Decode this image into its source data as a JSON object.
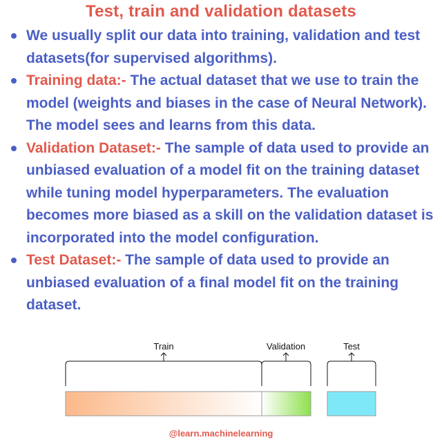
{
  "title": "Test, train and validation datasets",
  "bullets": [
    {
      "term": "",
      "text": "We usually split our data into training, validation and test datasets(for supervised algorithms)."
    },
    {
      "term": "Training data:-",
      "text": " The actual dataset that we use to train the model (weights and biases in the case of Neural Network). The model sees and learns from this data."
    },
    {
      "term": "Validation Dataset:-",
      "text": " The sample of data used to provide an unbiased evaluation of a model fit on the training dataset while tuning model hyperparameters. The evaluation becomes more biased as a skill on the validation dataset is incorporated into the model configuration."
    },
    {
      "term": "Test Dataset:-",
      "text": " The sample of data used to provide an unbiased evaluation of a final model fit on the training dataset."
    }
  ],
  "diagram": {
    "labels": {
      "train": "Train",
      "validation": "Validation",
      "test": "Test"
    },
    "colors": {
      "train_start": "#fcb98a",
      "train_end": "#ffffff",
      "validation_start": "#ffffff",
      "validation_end": "#8ee04e",
      "test": "#7fe8f8"
    }
  },
  "footer": "@learn.machinelearning"
}
